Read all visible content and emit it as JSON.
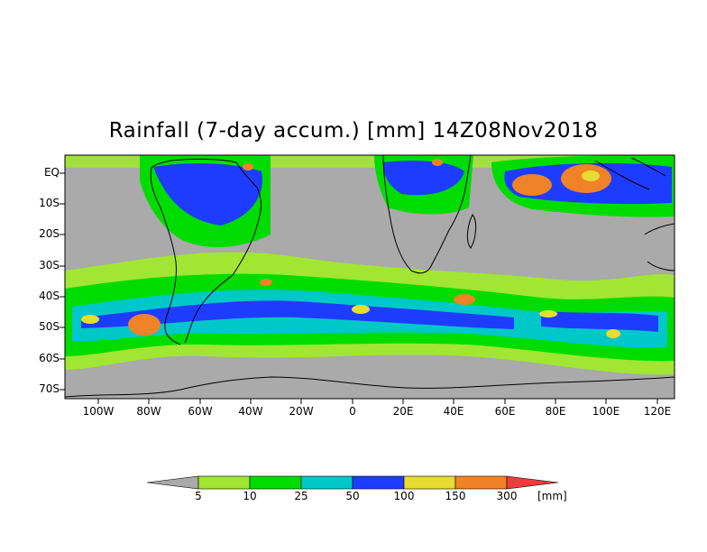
{
  "title": "Rainfall (7-day accum.) [mm] 14Z08Nov2018",
  "lat_labels": [
    "EQ",
    "10S",
    "20S",
    "30S",
    "40S",
    "50S",
    "60S",
    "70S"
  ],
  "lon_labels": [
    "100W",
    "80W",
    "60W",
    "40W",
    "20W",
    "0",
    "20E",
    "40E",
    "60E",
    "80E",
    "100E",
    "120E"
  ],
  "legend": {
    "thresholds": [
      "5",
      "10",
      "25",
      "50",
      "100",
      "150",
      "300"
    ],
    "unit": "[mm]",
    "colors": [
      "#aaaaaa",
      "#a0e632",
      "#00dc00",
      "#00c8c8",
      "#1e3cff",
      "#e6dc32",
      "#f08228",
      "#f03c3c"
    ]
  },
  "colors": {
    "ocean": "#aaaaaa",
    "land_dry": "#aaaaaa",
    "coast": "#000000"
  }
}
